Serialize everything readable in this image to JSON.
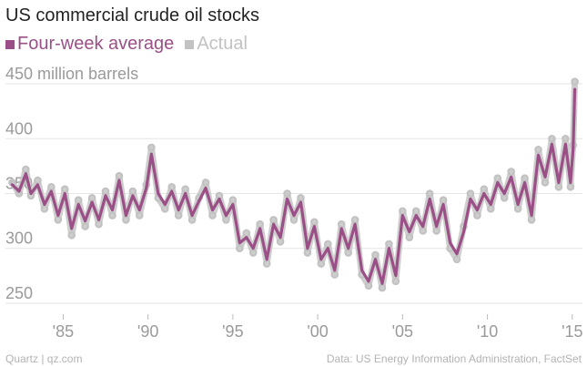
{
  "title": "US commercial crude oil stocks",
  "colors": {
    "average": "#9b4f87",
    "actual": "#c2c2c2",
    "grid": "#e6e6e6",
    "tick_text": "#9a9a9a"
  },
  "legend": [
    {
      "label": "Four-week average",
      "color": "#9b4f87"
    },
    {
      "label": "Actual",
      "color": "#c2c2c2"
    }
  ],
  "source": "Quartz | qz.com",
  "attribution": "Data: US Energy Information Administration, FactSet",
  "chart_data": {
    "type": "line",
    "title": "US commercial crude oil stocks",
    "ylabel": "",
    "xlabel": "",
    "ylim": [
      240,
      460
    ],
    "xlim": [
      1981.6,
      2015.6
    ],
    "y_ticks": [
      250,
      300,
      350,
      400,
      450
    ],
    "y_tick_labels": [
      "250",
      "300",
      "350",
      "400",
      "450 million barrels"
    ],
    "x_ticks": [
      1985,
      1990,
      1995,
      2000,
      2005,
      2010,
      2015
    ],
    "x_tick_labels": [
      "'85",
      "'90",
      "'95",
      "'00",
      "'05",
      "'10",
      "'15"
    ],
    "grid": true,
    "legend_position": "top-left",
    "series": [
      {
        "name": "Four-week average",
        "x": [
          1982.0,
          1982.4,
          1982.8,
          1983.1,
          1983.5,
          1983.9,
          1984.3,
          1984.7,
          1985.1,
          1985.5,
          1985.9,
          1986.3,
          1986.7,
          1987.1,
          1987.5,
          1987.9,
          1988.3,
          1988.7,
          1989.1,
          1989.5,
          1989.9,
          1990.2,
          1990.6,
          1991.0,
          1991.4,
          1991.8,
          1992.2,
          1992.6,
          1993.0,
          1993.4,
          1993.8,
          1994.2,
          1994.6,
          1995.0,
          1995.4,
          1995.8,
          1996.2,
          1996.6,
          1997.0,
          1997.4,
          1997.8,
          1998.2,
          1998.6,
          1999.0,
          1999.4,
          1999.8,
          2000.2,
          2000.6,
          2001.0,
          2001.4,
          2001.8,
          2002.2,
          2002.6,
          2003.0,
          2003.4,
          2003.8,
          2004.2,
          2004.6,
          2005.0,
          2005.4,
          2005.8,
          2006.2,
          2006.6,
          2007.0,
          2007.4,
          2007.8,
          2008.2,
          2008.6,
          2009.0,
          2009.4,
          2009.8,
          2010.2,
          2010.6,
          2011.0,
          2011.4,
          2011.8,
          2012.2,
          2012.6,
          2013.0,
          2013.4,
          2013.8,
          2014.2,
          2014.6,
          2014.9,
          2015.05,
          2015.15
        ],
        "y": [
          358,
          352,
          368,
          350,
          358,
          340,
          352,
          330,
          350,
          318,
          340,
          325,
          342,
          326,
          348,
          335,
          362,
          330,
          348,
          335,
          355,
          386,
          350,
          340,
          352,
          335,
          350,
          330,
          343,
          355,
          335,
          345,
          330,
          340,
          305,
          310,
          300,
          318,
          290,
          322,
          310,
          345,
          330,
          342,
          300,
          320,
          290,
          300,
          280,
          318,
          300,
          322,
          280,
          270,
          290,
          268,
          300,
          275,
          330,
          315,
          330,
          320,
          345,
          320,
          340,
          305,
          295,
          315,
          345,
          335,
          350,
          340,
          360,
          350,
          365,
          340,
          360,
          330,
          385,
          365,
          395,
          360,
          395,
          360,
          390,
          445
        ]
      },
      {
        "name": "Actual",
        "x": [
          1982.0,
          1982.4,
          1982.8,
          1983.1,
          1983.5,
          1983.9,
          1984.3,
          1984.7,
          1985.1,
          1985.5,
          1985.9,
          1986.3,
          1986.7,
          1987.1,
          1987.5,
          1987.9,
          1988.3,
          1988.7,
          1989.1,
          1989.5,
          1989.9,
          1990.2,
          1990.6,
          1991.0,
          1991.4,
          1991.8,
          1992.2,
          1992.6,
          1993.0,
          1993.4,
          1993.8,
          1994.2,
          1994.6,
          1995.0,
          1995.4,
          1995.8,
          1996.2,
          1996.6,
          1997.0,
          1997.4,
          1997.8,
          1998.2,
          1998.6,
          1999.0,
          1999.4,
          1999.8,
          2000.2,
          2000.6,
          2001.0,
          2001.4,
          2001.8,
          2002.2,
          2002.6,
          2003.0,
          2003.4,
          2003.8,
          2004.2,
          2004.6,
          2005.0,
          2005.4,
          2005.8,
          2006.2,
          2006.6,
          2007.0,
          2007.4,
          2007.8,
          2008.2,
          2008.6,
          2009.0,
          2009.4,
          2009.8,
          2010.2,
          2010.6,
          2011.0,
          2011.4,
          2011.8,
          2012.2,
          2012.6,
          2013.0,
          2013.4,
          2013.8,
          2014.2,
          2014.6,
          2014.9,
          2015.05,
          2015.15
        ],
        "y": [
          360,
          350,
          372,
          348,
          362,
          336,
          356,
          326,
          354,
          312,
          344,
          320,
          346,
          322,
          352,
          330,
          366,
          326,
          352,
          330,
          358,
          392,
          346,
          336,
          356,
          330,
          354,
          326,
          346,
          360,
          330,
          348,
          326,
          344,
          300,
          314,
          296,
          322,
          286,
          326,
          306,
          350,
          326,
          346,
          296,
          324,
          286,
          304,
          276,
          322,
          296,
          326,
          276,
          266,
          294,
          264,
          304,
          270,
          334,
          310,
          334,
          316,
          350,
          316,
          344,
          300,
          290,
          320,
          350,
          330,
          354,
          336,
          364,
          346,
          370,
          336,
          364,
          326,
          390,
          360,
          400,
          356,
          400,
          356,
          394,
          452
        ]
      }
    ]
  }
}
